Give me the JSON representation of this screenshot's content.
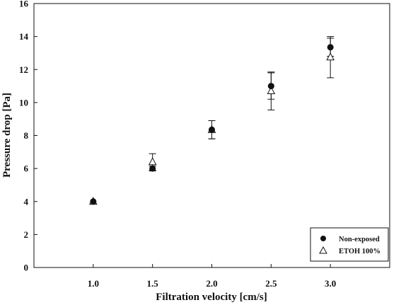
{
  "chart_data": {
    "type": "scatter",
    "title": "",
    "xlabel": "Filtration velocity [cm/s]",
    "ylabel": "Pressure drop [Pa]",
    "xlim": [
      0.5,
      3.5
    ],
    "ylim": [
      0,
      16
    ],
    "x_ticks": [
      "1.0",
      "1.5",
      "2.0",
      "2.5",
      "3.0"
    ],
    "x_tick_values": [
      1.0,
      1.5,
      2.0,
      2.5,
      3.0
    ],
    "y_ticks": [
      "0",
      "2",
      "4",
      "6",
      "8",
      "10",
      "12",
      "14",
      "16"
    ],
    "y_tick_values": [
      0,
      2,
      4,
      6,
      8,
      10,
      12,
      14,
      16
    ],
    "grid": false,
    "legend_position": "bottom-right",
    "series": [
      {
        "name": "Non-exposed",
        "marker": "filled-circle",
        "color": "#111111",
        "points": [
          {
            "x": 1.0,
            "y": 4.0,
            "err": 0.0
          },
          {
            "x": 1.5,
            "y": 6.0,
            "err": 0.15
          },
          {
            "x": 2.0,
            "y": 8.35,
            "err": 0.55
          },
          {
            "x": 2.5,
            "y": 11.0,
            "err": 0.8
          },
          {
            "x": 3.0,
            "y": 13.35,
            "err": 0.55
          }
        ]
      },
      {
        "name": "ETOH 100%",
        "marker": "open-triangle",
        "color": "#111111",
        "points": [
          {
            "x": 1.0,
            "y": 4.0,
            "err": 0.0
          },
          {
            "x": 1.5,
            "y": 6.4,
            "err": 0.5
          },
          {
            "x": 2.0,
            "y": 8.35,
            "err": 0.55
          },
          {
            "x": 2.5,
            "y": 10.7,
            "err": 1.15
          },
          {
            "x": 3.0,
            "y": 12.75,
            "err": 1.25
          }
        ]
      }
    ]
  }
}
